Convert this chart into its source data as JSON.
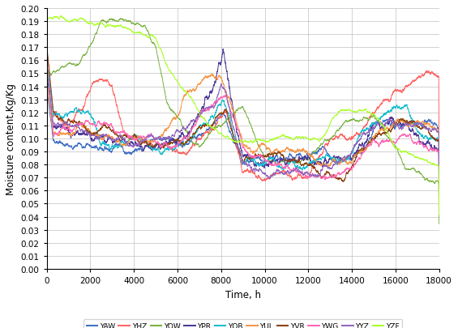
{
  "xlabel": "Time, h",
  "ylabel": "Moisture content,Kg/Kg",
  "xlim": [
    0,
    18000
  ],
  "ylim": [
    0,
    0.2
  ],
  "yticks": [
    0,
    0.01,
    0.02,
    0.03,
    0.04,
    0.05,
    0.06,
    0.07,
    0.08,
    0.09,
    0.1,
    0.11,
    0.12,
    0.13,
    0.14,
    0.15,
    0.16,
    0.17,
    0.18,
    0.19,
    0.2
  ],
  "xticks": [
    0,
    2000,
    4000,
    6000,
    8000,
    10000,
    12000,
    14000,
    16000,
    18000
  ],
  "legend_labels": [
    "YAW",
    "YHZ",
    "YOW",
    "YPR",
    "YQB",
    "YUL",
    "YVR",
    "YWG",
    "YYZ",
    "YZF"
  ],
  "legend_colors": [
    "#4472C4",
    "#FF6666",
    "#7CB342",
    "#4F3999",
    "#17BECF",
    "#F79646",
    "#8B4513",
    "#FF1493",
    "#9467BD",
    "#ADFF2F"
  ],
  "background_color": "#FFFFFF",
  "grid_color": "#C0C0C0"
}
